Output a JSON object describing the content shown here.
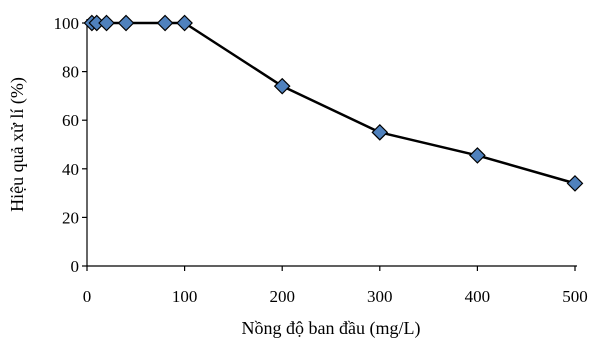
{
  "chart_data": {
    "type": "scatter",
    "title": "",
    "xlabel": "Nồng độ ban đầu (mg/L)",
    "ylabel": "Hiệu quả xử lí (%)",
    "xlim": [
      0,
      500
    ],
    "ylim": [
      0,
      100
    ],
    "xticks": [
      0,
      100,
      200,
      300,
      400,
      500
    ],
    "yticks": [
      0,
      20,
      40,
      60,
      80,
      100
    ],
    "grid": false,
    "legend": "none",
    "marker": "diamond",
    "series": [
      {
        "x": [
          5,
          10,
          20,
          40,
          80,
          100,
          200,
          300,
          400,
          500
        ],
        "y": [
          100,
          100,
          100,
          100,
          100,
          100,
          74,
          55,
          45.5,
          34
        ],
        "marker_color": "#4f81bd",
        "marker_edge_color": "#000000",
        "line_color": "#000000"
      }
    ]
  }
}
